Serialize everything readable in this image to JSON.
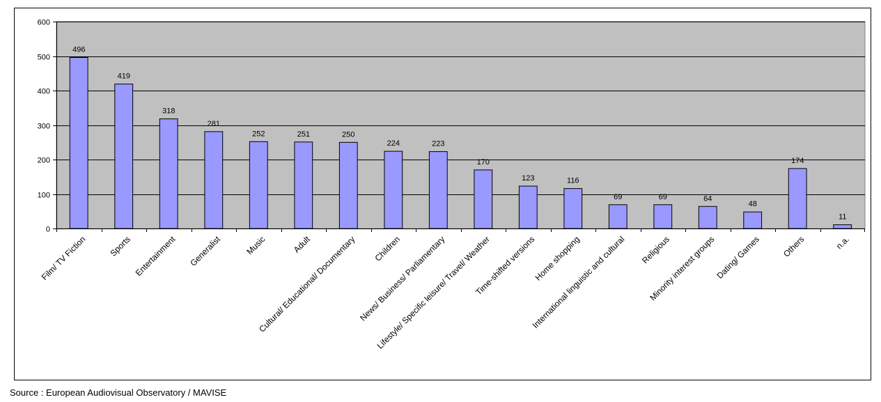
{
  "chart_data": {
    "type": "bar",
    "categories": [
      "Film/ TV Fiction",
      "Sports",
      "Entertainment",
      "Generalist",
      "Music",
      "Adult",
      "Cultural/ Educational/ Documentary",
      "Children",
      "News/ Business/ Parliamentary",
      "Lifestyle/ Specific leisure/ Travel/ Weather",
      "Time-shifted versions",
      "Home shopping",
      "International linguistic and cultural",
      "Religious",
      "Minority interest groups",
      "Dating/ Games",
      "Others",
      "n.a."
    ],
    "values": [
      496,
      419,
      318,
      281,
      252,
      251,
      250,
      224,
      223,
      170,
      123,
      116,
      69,
      69,
      64,
      48,
      174,
      11
    ],
    "data_labels": [
      "496",
      "419",
      "318",
      "281",
      "252",
      "251",
      "250",
      "224",
      "223",
      "170",
      "123",
      "116",
      "69",
      "69",
      "64",
      "48",
      "174",
      "11"
    ],
    "yticks": [
      0,
      100,
      200,
      300,
      400,
      500,
      600
    ],
    "ylim": [
      0,
      600
    ],
    "title": "",
    "xlabel": "",
    "ylabel": "",
    "grid": true,
    "legend": "none",
    "colors": {
      "bar": "#9999ff",
      "plot_bg": "#c0c0c0",
      "grid": "#000000"
    }
  },
  "source": "Source : European Audiovisual Observatory / MAVISE"
}
